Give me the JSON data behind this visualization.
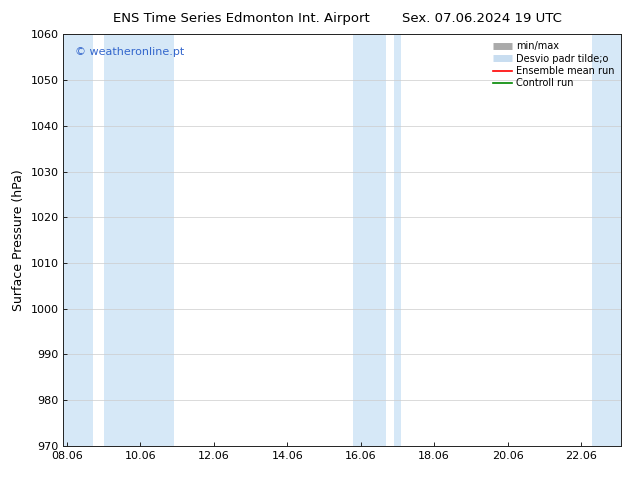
{
  "title_left": "ENS Time Series Edmonton Int. Airport",
  "title_right": "Sex. 07.06.2024 19 UTC",
  "ylabel": "Surface Pressure (hPa)",
  "ylim": [
    970,
    1060
  ],
  "yticks": [
    970,
    980,
    990,
    1000,
    1010,
    1020,
    1030,
    1040,
    1050,
    1060
  ],
  "xtick_labels": [
    "08.06",
    "10.06",
    "12.06",
    "14.06",
    "16.06",
    "18.06",
    "20.06",
    "22.06"
  ],
  "xtick_positions": [
    0,
    2,
    4,
    6,
    8,
    10,
    12,
    14
  ],
  "xlim": [
    -0.1,
    15.1
  ],
  "watermark": "© weatheronline.pt",
  "watermark_color": "#3366cc",
  "bg_color": "#ffffff",
  "plot_bg_color": "#ffffff",
  "shaded_bands_color": "#d6e8f7",
  "shaded_bands": [
    {
      "x_start": -0.1,
      "x_end": 0.7
    },
    {
      "x_start": 1.0,
      "x_end": 2.9
    },
    {
      "x_start": 7.8,
      "x_end": 8.7
    },
    {
      "x_start": 8.9,
      "x_end": 9.1
    },
    {
      "x_start": 14.3,
      "x_end": 15.1
    }
  ],
  "legend_items": [
    {
      "label": "min/max",
      "color": "#aaaaaa",
      "lw": 5
    },
    {
      "label": "Desvio padr tilde;o",
      "color": "#c8ddf0",
      "lw": 5
    },
    {
      "label": "Ensemble mean run",
      "color": "#ff0000",
      "lw": 1.2
    },
    {
      "label": "Controll run",
      "color": "#008800",
      "lw": 1.2
    }
  ],
  "title_fontsize": 9.5,
  "tick_fontsize": 8,
  "label_fontsize": 9
}
